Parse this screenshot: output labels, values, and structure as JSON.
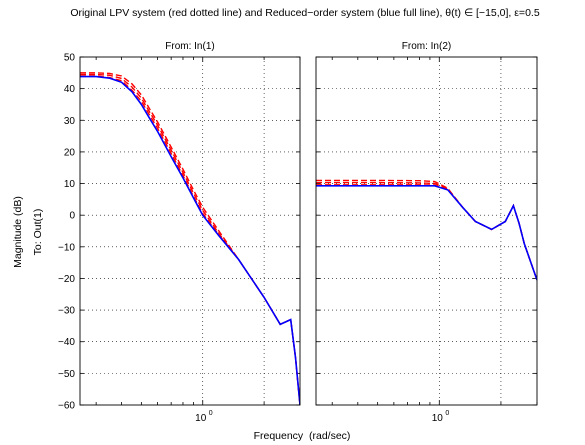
{
  "chart_data": {
    "type": "line",
    "title": "Original LPV system (red dotted line) and Reduced−order system (blue full line), θ(t) ∈ [−15,0], ε=0.5",
    "xlabel": "Frequency  (rad/sec)",
    "ylabel": "Magnitude (dB)",
    "output_label": "To: Out(1)",
    "x_scale": "log",
    "grid": true,
    "ylim": [
      -60,
      50
    ],
    "yticks": [
      -60,
      -50,
      -40,
      -30,
      -20,
      -10,
      0,
      10,
      20,
      30,
      40,
      50
    ],
    "colors": {
      "original": "#ff0000",
      "reduced": "#0000ff"
    },
    "panels": [
      {
        "title": "From: In(1)",
        "xlim": [
          0.25,
          3.0
        ],
        "xtick_labels": [
          {
            "x": 1,
            "label": "10",
            "exp": "0"
          }
        ],
        "series": [
          {
            "name": "Original LPV system",
            "style": "dotted",
            "x": [
              0.25,
              0.3,
              0.35,
              0.4,
              0.45,
              0.5,
              0.55,
              0.6,
              0.7,
              0.8,
              0.9,
              1.0,
              1.2,
              1.5,
              2.0,
              2.4,
              2.7,
              2.85,
              3.0
            ],
            "y": [
              45.0,
              45.0,
              44.8,
              44.0,
              41.5,
              38.0,
              33.5,
              29.5,
              21.5,
              14.5,
              8.0,
              2.5,
              -5.0,
              -14.0,
              -26.0,
              -34.5,
              -33.0,
              -45.0,
              -60.0
            ]
          },
          {
            "name": "Original LPV system",
            "style": "dotted",
            "x": [
              0.25,
              0.3,
              0.35,
              0.4,
              0.45,
              0.5,
              0.55,
              0.6,
              0.7,
              0.8,
              0.9,
              1.0,
              1.2,
              1.5,
              2.0,
              2.4,
              2.7,
              2.85,
              3.0
            ],
            "y": [
              44.5,
              44.5,
              44.2,
              43.2,
              40.5,
              37.0,
              32.5,
              28.5,
              20.5,
              13.5,
              7.0,
              1.5,
              -5.8,
              -14.0,
              -26.0,
              -34.5,
              -33.0,
              -45.0,
              -60.0
            ]
          },
          {
            "name": "Original LPV system",
            "style": "dotted",
            "x": [
              0.25,
              0.3,
              0.35,
              0.4,
              0.45,
              0.5,
              0.55,
              0.6,
              0.7,
              0.8,
              0.9,
              1.0,
              1.2,
              1.5,
              2.0,
              2.4,
              2.7,
              2.85,
              3.0
            ],
            "y": [
              44.0,
              44.0,
              43.5,
              42.5,
              39.5,
              36.0,
              31.5,
              27.5,
              19.5,
              12.5,
              6.0,
              0.5,
              -6.2,
              -14.0,
              -26.0,
              -34.5,
              -33.0,
              -45.0,
              -60.0
            ]
          },
          {
            "name": "Reduced-order system",
            "style": "solid",
            "x": [
              0.25,
              0.3,
              0.35,
              0.4,
              0.45,
              0.5,
              0.55,
              0.6,
              0.7,
              0.8,
              0.9,
              1.0,
              1.2,
              1.5,
              2.0,
              2.4,
              2.7,
              2.85,
              3.0
            ],
            "y": [
              43.8,
              43.8,
              43.3,
              42.0,
              39.0,
              35.0,
              30.5,
              26.5,
              18.5,
              11.8,
              5.5,
              0.0,
              -6.5,
              -14.0,
              -26.0,
              -34.5,
              -33.0,
              -45.0,
              -60.0
            ]
          }
        ]
      },
      {
        "title": "From: In(2)",
        "xlim": [
          0.25,
          3.0
        ],
        "xtick_labels": [
          {
            "x": 1,
            "label": "10",
            "exp": "0"
          }
        ],
        "series": [
          {
            "name": "Original LPV system",
            "style": "dotted",
            "x": [
              0.25,
              0.5,
              0.8,
              0.95,
              1.1,
              1.3,
              1.5,
              1.8,
              2.1,
              2.3,
              2.45,
              2.6,
              2.8,
              3.0
            ],
            "y": [
              11.0,
              11.0,
              10.9,
              10.6,
              8.5,
              2.5,
              -2.0,
              -4.5,
              -2.0,
              3.0,
              -2.5,
              -9.0,
              -15.0,
              -20.5
            ]
          },
          {
            "name": "Original LPV system",
            "style": "dotted",
            "x": [
              0.25,
              0.5,
              0.8,
              0.95,
              1.1,
              1.3,
              1.5,
              1.8,
              2.1,
              2.3,
              2.45,
              2.6,
              2.8,
              3.0
            ],
            "y": [
              10.3,
              10.3,
              10.2,
              10.0,
              8.3,
              2.5,
              -2.0,
              -4.5,
              -2.0,
              3.0,
              -2.5,
              -9.0,
              -15.0,
              -20.5
            ]
          },
          {
            "name": "Original LPV system",
            "style": "dotted",
            "x": [
              0.25,
              0.5,
              0.8,
              0.95,
              1.1,
              1.3,
              1.5,
              1.8,
              2.1,
              2.3,
              2.45,
              2.6,
              2.8,
              3.0
            ],
            "y": [
              9.6,
              9.6,
              9.6,
              9.5,
              8.1,
              2.5,
              -2.0,
              -4.5,
              -2.0,
              3.0,
              -2.5,
              -9.0,
              -15.0,
              -20.5
            ]
          },
          {
            "name": "Reduced-order system",
            "style": "solid",
            "x": [
              0.25,
              0.5,
              0.8,
              0.95,
              1.1,
              1.3,
              1.5,
              1.8,
              2.1,
              2.3,
              2.45,
              2.6,
              2.8,
              3.0
            ],
            "y": [
              9.3,
              9.3,
              9.3,
              9.3,
              8.0,
              2.5,
              -2.0,
              -4.5,
              -2.0,
              3.0,
              -2.5,
              -9.0,
              -15.0,
              -20.5
            ]
          }
        ]
      }
    ]
  }
}
